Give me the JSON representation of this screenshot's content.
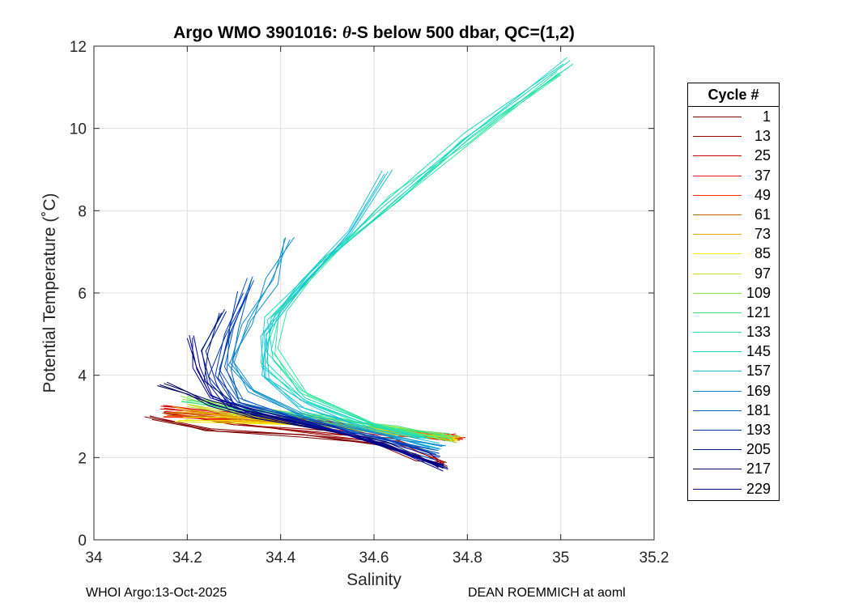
{
  "chart_data": {
    "type": "line",
    "title": "Argo WMO 3901016: θ-S below 500 dbar,  QC=(1,2)",
    "title_prefix": "Argo WMO 3901016: ",
    "title_theta": "θ",
    "title_suffix": "-S below 500 dbar,  QC=(1,2)",
    "xlabel": "Salinity",
    "ylabel": "Potential Temperature (˚C)",
    "xlim": [
      34,
      35.2
    ],
    "ylim": [
      0,
      12
    ],
    "xticks": [
      34,
      34.2,
      34.4,
      34.6,
      34.8,
      35,
      35.2
    ],
    "xtick_labels": [
      "34",
      "34.2",
      "34.4",
      "34.6",
      "34.8",
      "35",
      "35.2"
    ],
    "yticks": [
      0,
      2,
      4,
      6,
      8,
      10,
      12
    ],
    "ytick_labels": [
      "0",
      "2",
      "4",
      "6",
      "8",
      "10",
      "12"
    ],
    "grid": true,
    "legend_title": "Cycle #",
    "legend_position": "right",
    "series": [
      {
        "name": "1",
        "color": "#800000",
        "salinity": [
          34.12,
          34.25,
          34.45,
          34.6,
          34.7,
          34.74
        ],
        "theta": [
          3.0,
          2.7,
          2.55,
          2.35,
          2.0,
          1.8
        ]
      },
      {
        "name": "13",
        "color": "#990000",
        "salinity": [
          34.15,
          34.3,
          34.5,
          34.65,
          34.72,
          34.75
        ],
        "theta": [
          3.1,
          2.8,
          2.6,
          2.4,
          2.1,
          1.85
        ]
      },
      {
        "name": "25",
        "color": "#cc0000",
        "salinity": [
          34.15,
          34.3,
          34.5,
          34.65,
          34.75,
          34.79
        ],
        "theta": [
          3.2,
          3.0,
          2.8,
          2.6,
          2.5,
          2.45
        ]
      },
      {
        "name": "37",
        "color": "#e31a1c",
        "salinity": [
          34.15,
          34.3,
          34.5,
          34.65,
          34.75,
          34.78
        ],
        "theta": [
          3.2,
          3.0,
          2.8,
          2.6,
          2.5,
          2.5
        ]
      },
      {
        "name": "49",
        "color": "#ff3300",
        "salinity": [
          34.15,
          34.3,
          34.5,
          34.65,
          34.75,
          34.78
        ],
        "theta": [
          3.0,
          2.9,
          2.75,
          2.6,
          2.5,
          2.45
        ]
      },
      {
        "name": "61",
        "color": "#cc6600",
        "salinity": [
          34.16,
          34.3,
          34.5,
          34.65,
          34.75,
          34.78
        ],
        "theta": [
          3.1,
          2.95,
          2.8,
          2.62,
          2.5,
          2.45
        ]
      },
      {
        "name": "73",
        "color": "#e6a800",
        "salinity": [
          34.18,
          34.3,
          34.5,
          34.65,
          34.75,
          34.78
        ],
        "theta": [
          3.2,
          3.0,
          2.8,
          2.62,
          2.5,
          2.45
        ]
      },
      {
        "name": "85",
        "color": "#f2e600",
        "salinity": [
          34.18,
          34.3,
          34.5,
          34.65,
          34.75,
          34.78
        ],
        "theta": [
          2.9,
          2.9,
          2.75,
          2.6,
          2.5,
          2.4
        ]
      },
      {
        "name": "97",
        "color": "#ccdd33",
        "salinity": [
          34.2,
          34.3,
          34.5,
          34.65,
          34.75,
          34.77
        ],
        "theta": [
          3.3,
          3.1,
          2.85,
          2.65,
          2.5,
          2.45
        ]
      },
      {
        "name": "109",
        "color": "#80e640",
        "salinity": [
          34.2,
          34.3,
          34.5,
          34.65,
          34.75,
          34.77
        ],
        "theta": [
          3.5,
          3.2,
          2.9,
          2.65,
          2.5,
          2.45
        ]
      },
      {
        "name": "121",
        "color": "#40e680",
        "salinity": [
          34.2,
          34.3,
          34.5,
          34.65,
          34.75,
          34.77
        ],
        "theta": [
          3.4,
          3.2,
          2.95,
          2.7,
          2.55,
          2.5
        ]
      },
      {
        "name": "133",
        "color": "#33e6a0",
        "salinity": [
          34.72,
          34.6,
          34.45,
          34.38,
          34.4,
          34.5,
          34.65,
          34.8,
          35.0
        ],
        "theta": [
          2.45,
          2.8,
          3.6,
          4.6,
          5.6,
          6.8,
          8.3,
          9.7,
          11.3
        ]
      },
      {
        "name": "145",
        "color": "#1ad9c0",
        "salinity": [
          34.72,
          34.6,
          34.45,
          34.37,
          34.38,
          34.48,
          34.62,
          34.8,
          35.02
        ],
        "theta": [
          2.45,
          2.75,
          3.4,
          4.3,
          5.4,
          6.7,
          8.1,
          9.8,
          11.65
        ]
      },
      {
        "name": "157",
        "color": "#19c0d9",
        "salinity": [
          34.73,
          34.6,
          34.45,
          34.36,
          34.37,
          34.45,
          34.55,
          34.63
        ],
        "theta": [
          2.3,
          2.65,
          3.2,
          4.0,
          5.0,
          6.2,
          7.5,
          8.95
        ]
      },
      {
        "name": "169",
        "color": "#0d8fcc",
        "salinity": [
          34.74,
          34.6,
          34.45,
          34.33,
          34.3,
          34.33,
          34.38,
          34.42
        ],
        "theta": [
          2.2,
          2.6,
          3.0,
          3.6,
          4.3,
          5.3,
          6.3,
          7.3
        ]
      },
      {
        "name": "181",
        "color": "#0a5cc2",
        "salinity": [
          34.74,
          34.6,
          34.45,
          34.32,
          34.28,
          34.3,
          34.34
        ],
        "theta": [
          2.1,
          2.5,
          2.9,
          3.4,
          4.2,
          5.2,
          6.4
        ]
      },
      {
        "name": "193",
        "color": "#0033b3",
        "salinity": [
          34.74,
          34.6,
          34.45,
          34.3,
          34.26,
          34.28,
          34.32
        ],
        "theta": [
          2.0,
          2.45,
          2.85,
          3.3,
          4.0,
          5.0,
          6.0
        ]
      },
      {
        "name": "205",
        "color": "#001a8c",
        "salinity": [
          34.75,
          34.6,
          34.45,
          34.3,
          34.25,
          34.23,
          34.28
        ],
        "theta": [
          1.8,
          2.4,
          2.8,
          3.2,
          3.8,
          4.6,
          5.6
        ]
      },
      {
        "name": "217",
        "color": "#000066",
        "salinity": [
          34.75,
          34.62,
          34.5,
          34.35,
          34.25,
          34.2,
          34.15
        ],
        "theta": [
          1.75,
          2.35,
          2.65,
          3.0,
          3.3,
          3.6,
          3.8
        ]
      },
      {
        "name": "229",
        "color": "#000099",
        "salinity": [
          34.75,
          34.62,
          34.5,
          34.35,
          34.25,
          34.22,
          34.2
        ],
        "theta": [
          1.75,
          2.3,
          2.7,
          3.1,
          3.5,
          4.2,
          4.9
        ]
      }
    ]
  },
  "footer": {
    "left": "WHOI Argo:13-Oct-2025",
    "right": "DEAN ROEMMICH at aoml"
  }
}
